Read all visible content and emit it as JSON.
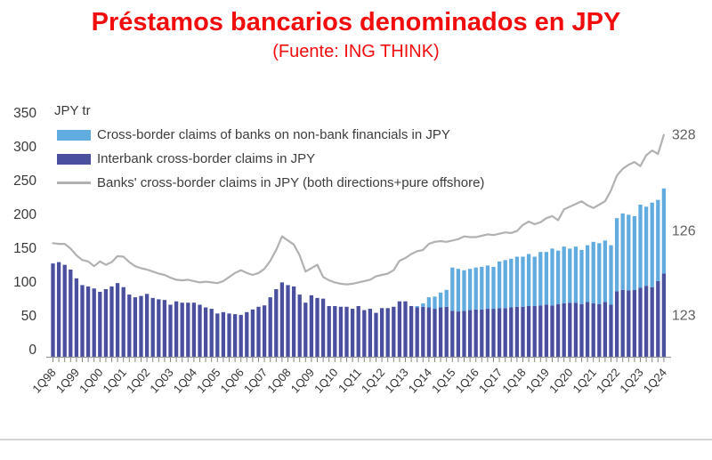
{
  "header": {
    "title": "Préstamos bancarios denominados en JPY",
    "subtitle": "(Fuente: ING THINK)"
  },
  "chart_data": {
    "type": "bar",
    "subtype": "stacked bars with overlay line",
    "unit_label": "JPY tr",
    "x_tick_labels": [
      "1Q98",
      "1Q99",
      "1Q00",
      "1Q01",
      "1Q02",
      "1Q03",
      "1Q04",
      "1Q05",
      "1Q06",
      "1Q07",
      "1Q08",
      "1Q09",
      "1Q10",
      "1Q11",
      "1Q12",
      "1Q13",
      "1Q14",
      "1Q15",
      "1Q16",
      "1Q17",
      "1Q18",
      "1Q19",
      "1Q20",
      "1Q21",
      "1Q22",
      "1Q23",
      "1Q24"
    ],
    "quarters_per_tick": 4,
    "n_points": 105,
    "ylim": [
      0,
      350
    ],
    "ytick_step": 50,
    "grid": false,
    "legend_position": "top-left inside plot",
    "series": [
      {
        "id": "nonbank",
        "label": "Cross-border claims of banks on non-bank financials in JPY",
        "type": "bar",
        "stack_index": 1,
        "color": "#62ABDE",
        "values": [
          0,
          0,
          0,
          0,
          0,
          0,
          0,
          0,
          0,
          0,
          0,
          0,
          0,
          0,
          0,
          0,
          0,
          0,
          0,
          0,
          0,
          0,
          0,
          0,
          0,
          0,
          0,
          0,
          0,
          0,
          0,
          0,
          0,
          0,
          0,
          0,
          0,
          0,
          0,
          0,
          0,
          0,
          0,
          0,
          0,
          0,
          0,
          0,
          0,
          0,
          0,
          0,
          0,
          0,
          0,
          0,
          0,
          0,
          0,
          0,
          0,
          0,
          2,
          5,
          15,
          18,
          22,
          25,
          64,
          63,
          60,
          61,
          62,
          63,
          64,
          62,
          69,
          71,
          72,
          74,
          74,
          77,
          73,
          79,
          78,
          84,
          79,
          84,
          80,
          83,
          80,
          84,
          91,
          90,
          91,
          88,
          108,
          113,
          112,
          109,
          123,
          117,
          125,
          120,
          126
        ]
      },
      {
        "id": "interbank",
        "label": "Interbank cross-border claims in JPY",
        "type": "bar",
        "stack_index": 0,
        "color": "#4A4F9E",
        "values": [
          138,
          140,
          136,
          129,
          116,
          106,
          104,
          101,
          96,
          100,
          104,
          109,
          103,
          92,
          88,
          90,
          93,
          87,
          85,
          84,
          77,
          82,
          80,
          80,
          80,
          77,
          73,
          71,
          64,
          66,
          64,
          63,
          62,
          66,
          70,
          74,
          76,
          88,
          100,
          110,
          106,
          104,
          92,
          80,
          91,
          87,
          86,
          75,
          75,
          74,
          74,
          71,
          75,
          69,
          71,
          65,
          72,
          72,
          74,
          82,
          82,
          75,
          73,
          74,
          73,
          71,
          73,
          74,
          68,
          67,
          68,
          69,
          70,
          70,
          71,
          71,
          72,
          72,
          73,
          74,
          74,
          75,
          75,
          76,
          77,
          76,
          78,
          79,
          80,
          80,
          78,
          81,
          79,
          78,
          81,
          77,
          97,
          99,
          98,
          99,
          102,
          105,
          103,
          112,
          123
        ]
      },
      {
        "id": "total_line",
        "label": "Banks' cross-border claims in JPY (both directions+pure offshore)",
        "type": "line",
        "color": "#B1B1B1",
        "values": [
          168,
          167,
          167,
          160,
          150,
          143,
          141,
          134,
          141,
          136,
          140,
          149,
          148,
          140,
          134,
          131,
          129,
          126,
          123,
          121,
          117,
          114,
          113,
          114,
          112,
          110,
          111,
          110,
          109,
          112,
          118,
          124,
          128,
          124,
          121,
          124,
          130,
          142,
          158,
          178,
          172,
          166,
          150,
          126,
          131,
          136,
          118,
          113,
          110,
          108,
          107,
          108,
          110,
          112,
          114,
          119,
          121,
          123,
          128,
          142,
          146,
          152,
          156,
          158,
          167,
          170,
          171,
          170,
          172,
          174,
          178,
          177,
          177,
          179,
          181,
          180,
          182,
          184,
          183,
          186,
          195,
          200,
          196,
          199,
          205,
          208,
          202,
          218,
          222,
          226,
          230,
          224,
          220,
          225,
          230,
          246,
          268,
          278,
          284,
          288,
          282,
          298,
          305,
          300,
          328
        ]
      }
    ],
    "annotations": [
      {
        "text": "328",
        "attach": "line_end"
      },
      {
        "text": "126",
        "attach": "last_bar_top_segment"
      },
      {
        "text": "123",
        "attach": "last_bar_bottom_segment"
      }
    ]
  },
  "colors": {
    "title_red": "#f10d0d",
    "axis_text": "#383838",
    "annotation_text": "#5f5f5f",
    "axis_line": "#9a9a9a",
    "bottom_rule": "#d3d3d3"
  }
}
